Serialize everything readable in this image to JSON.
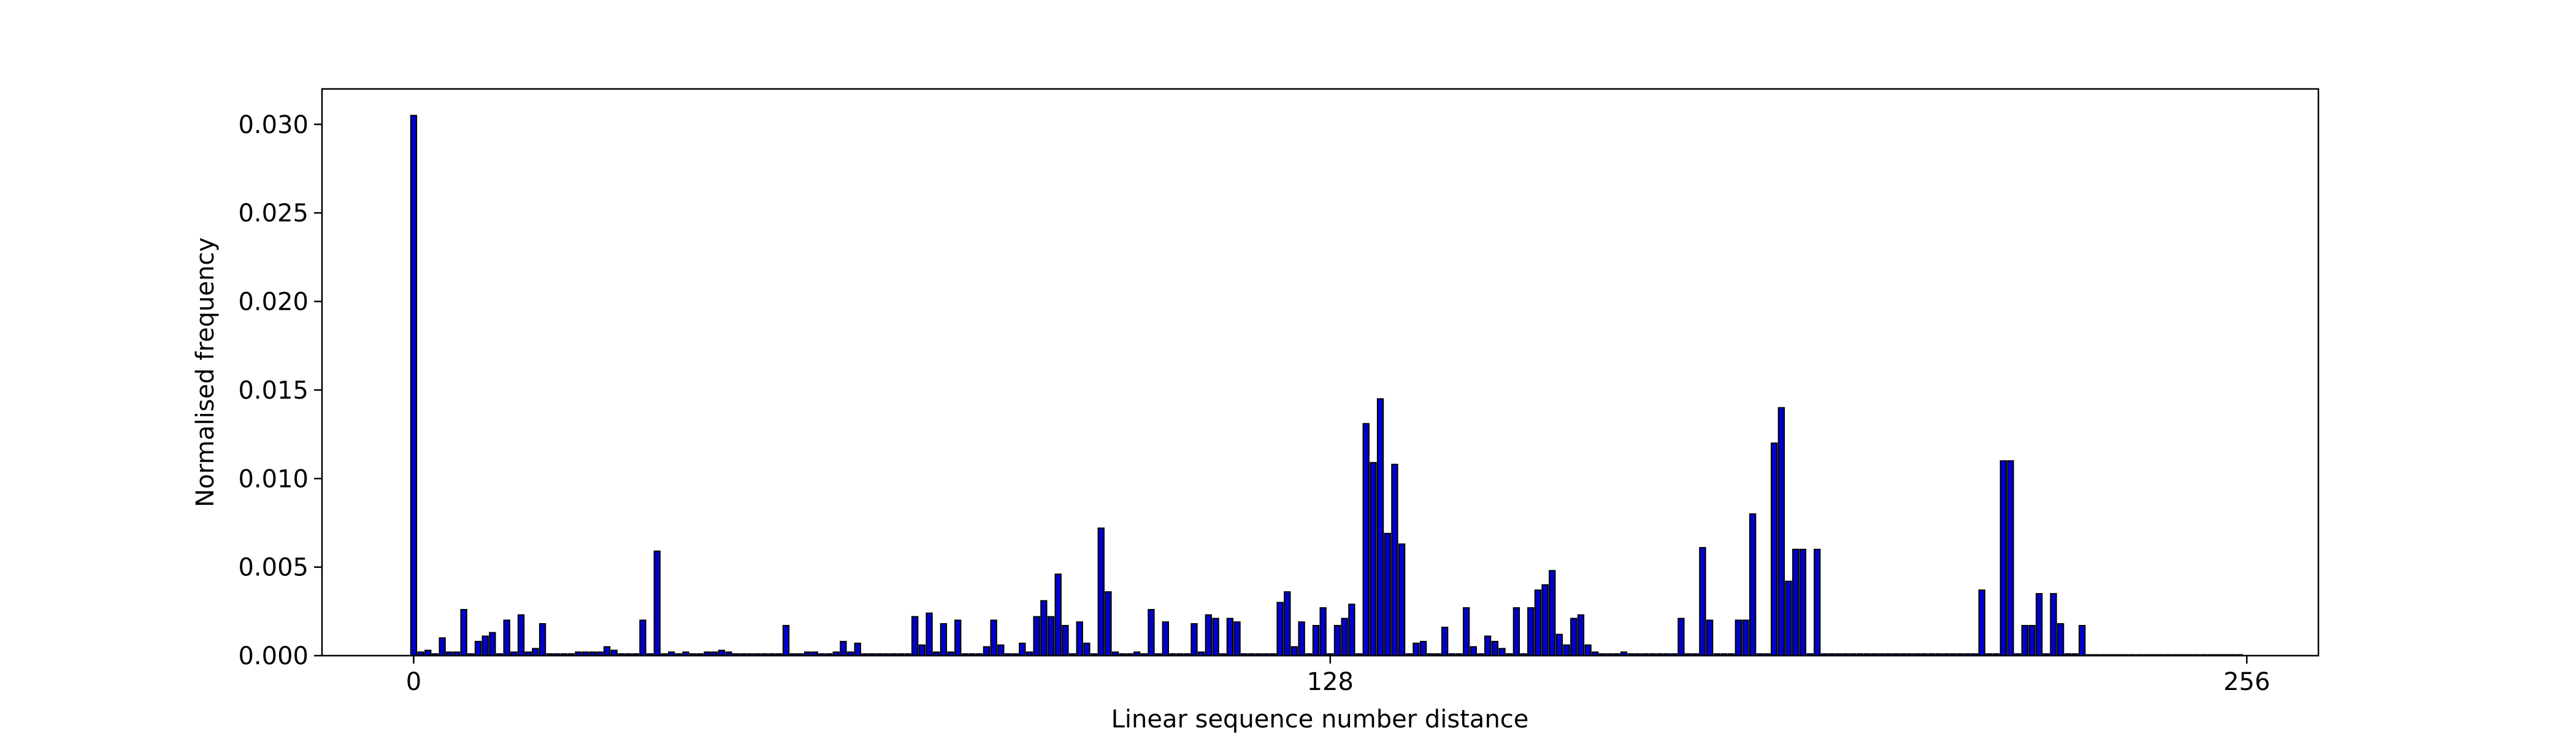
{
  "chart_data": {
    "type": "bar",
    "xlabel": "Linear sequence number distance",
    "ylabel": "Normalised frequency",
    "color": "#0000cd",
    "edgecolor": "#000000",
    "bar_width": 0.8,
    "xlim": [
      -12.8,
      266
    ],
    "ylim": [
      0,
      0.032
    ],
    "xticks": [
      0,
      128,
      256
    ],
    "yticks": [
      {
        "value": 0,
        "label": "0.000"
      },
      {
        "value": 0.005,
        "label": "0.005"
      },
      {
        "value": 0.01,
        "label": "0.010"
      },
      {
        "value": 0.015,
        "label": "0.015"
      },
      {
        "value": 0.02,
        "label": "0.020"
      },
      {
        "value": 0.025,
        "label": "0.025"
      },
      {
        "value": 0.03,
        "label": "0.030"
      }
    ],
    "x": [
      0,
      1,
      2,
      3,
      4,
      5,
      6,
      7,
      8,
      9,
      10,
      11,
      12,
      13,
      14,
      15,
      16,
      17,
      18,
      19,
      20,
      21,
      22,
      23,
      24,
      25,
      26,
      27,
      28,
      29,
      30,
      31,
      32,
      33,
      34,
      35,
      36,
      37,
      38,
      39,
      40,
      41,
      42,
      43,
      44,
      45,
      46,
      47,
      48,
      49,
      50,
      51,
      52,
      53,
      54,
      55,
      56,
      57,
      58,
      59,
      60,
      61,
      62,
      63,
      64,
      65,
      66,
      67,
      68,
      69,
      70,
      71,
      72,
      73,
      74,
      75,
      76,
      77,
      78,
      79,
      80,
      81,
      82,
      83,
      84,
      85,
      86,
      87,
      88,
      89,
      90,
      91,
      92,
      93,
      94,
      95,
      96,
      97,
      98,
      99,
      100,
      101,
      102,
      103,
      104,
      105,
      106,
      107,
      108,
      109,
      110,
      111,
      112,
      113,
      114,
      115,
      116,
      117,
      118,
      119,
      120,
      121,
      122,
      123,
      124,
      125,
      126,
      127,
      128,
      129,
      130,
      131,
      132,
      133,
      134,
      135,
      136,
      137,
      138,
      139,
      140,
      141,
      142,
      143,
      144,
      145,
      146,
      147,
      148,
      149,
      150,
      151,
      152,
      153,
      154,
      155,
      156,
      157,
      158,
      159,
      160,
      161,
      162,
      163,
      164,
      165,
      166,
      167,
      168,
      169,
      170,
      171,
      172,
      173,
      174,
      175,
      176,
      177,
      178,
      179,
      180,
      181,
      182,
      183,
      184,
      185,
      186,
      187,
      188,
      189,
      190,
      191,
      192,
      193,
      194,
      195,
      196,
      197,
      198,
      199,
      200,
      201,
      202,
      203,
      204,
      205,
      206,
      207,
      208,
      209,
      210,
      211,
      212,
      213,
      214,
      215,
      216,
      217,
      218,
      219,
      220,
      221,
      222,
      223,
      224,
      225,
      226,
      227,
      228,
      229,
      230,
      231,
      232,
      233,
      234,
      235,
      236,
      237,
      238,
      239,
      240,
      241,
      242,
      243,
      244,
      245,
      246,
      247,
      248,
      249,
      250,
      251,
      252,
      253,
      254,
      255
    ],
    "values": [
      0.0305,
      0.0002,
      0.0003,
      0.0001,
      0.001,
      0.0002,
      0.0002,
      0.0026,
      0.0001,
      0.0008,
      0.0011,
      0.0013,
      0.0001,
      0.002,
      0.0002,
      0.0023,
      0.0002,
      0.0004,
      0.0018,
      0.0001,
      0.0001,
      0.0001,
      0.0001,
      0.0002,
      0.0002,
      0.0002,
      0.0002,
      0.0005,
      0.0003,
      0.0001,
      0.0001,
      0.0001,
      0.002,
      0.0001,
      0.0059,
      0.0001,
      0.0002,
      0.0001,
      0.0002,
      0.0001,
      0.0001,
      0.0002,
      0.0002,
      0.0003,
      0.0002,
      0.0001,
      0.0001,
      0.0001,
      0.0001,
      0.0001,
      0.0001,
      0.0001,
      0.0017,
      0.0001,
      0.0001,
      0.0002,
      0.0002,
      0.0001,
      0.0001,
      0.0002,
      0.0008,
      0.0002,
      0.0007,
      0.0001,
      0.0001,
      0.0001,
      0.0001,
      0.0001,
      0.0001,
      0.0001,
      0.0022,
      0.0006,
      0.0024,
      0.0002,
      0.0018,
      0.0002,
      0.002,
      0.0001,
      0.0001,
      0.0001,
      0.0005,
      0.002,
      0.0006,
      0.0001,
      0.0001,
      0.0007,
      0.0002,
      0.0022,
      0.0031,
      0.0022,
      0.0046,
      0.0017,
      0.0001,
      0.0019,
      0.0007,
      0.0001,
      0.0072,
      0.0036,
      0.0002,
      0.0001,
      0.0001,
      0.0002,
      0.0001,
      0.0026,
      0.0001,
      0.0019,
      0.0001,
      0.0001,
      0.0001,
      0.0018,
      0.0002,
      0.0023,
      0.0021,
      0.0001,
      0.0021,
      0.0019,
      0.0001,
      0.0001,
      0.0001,
      0.0001,
      0.0001,
      0.003,
      0.0036,
      0.0005,
      0.0019,
      0.0001,
      0.0017,
      0.0027,
      0.0001,
      0.0017,
      0.0021,
      0.0029,
      0.0001,
      0.0131,
      0.0109,
      0.0145,
      0.0069,
      0.0108,
      0.0063,
      0.0001,
      0.0007,
      0.0008,
      0.0001,
      0.0001,
      0.0016,
      0.0001,
      0.0001,
      0.0027,
      0.0005,
      0.0001,
      0.0011,
      0.0008,
      0.0004,
      0.0001,
      0.0027,
      0.0001,
      0.0027,
      0.0037,
      0.004,
      0.0048,
      0.0012,
      0.0006,
      0.0021,
      0.0023,
      0.0006,
      0.0002,
      0.0001,
      0.0001,
      0.0001,
      0.0002,
      0.0001,
      0.0001,
      0.0001,
      0.0001,
      0.0001,
      0.0001,
      0.0001,
      0.0021,
      0.0001,
      0.0001,
      0.0061,
      0.002,
      0.0001,
      0.0001,
      0.0001,
      0.002,
      0.002,
      0.008,
      0.0001,
      0.0001,
      0.012,
      0.014,
      0.0042,
      0.006,
      0.006,
      0.0001,
      0.006,
      0.0001,
      0.0001,
      0.0001,
      0.0001,
      0.0001,
      0.0001,
      0.0001,
      0.0001,
      0.0001,
      0.0001,
      0.0001,
      0.0001,
      0.0001,
      0.0001,
      0.0001,
      0.0001,
      0.0001,
      0.0001,
      0.0001,
      0.0001,
      0.0001,
      0.0001,
      0.0037,
      0.0001,
      0.0001,
      0.011,
      0.011,
      0.0001,
      0.0017,
      0.0017,
      0.0035,
      0.0001,
      0.0035,
      0.0018,
      0.0001,
      0.0001,
      0.0017,
      5e-05,
      5e-05,
      5e-05,
      5e-05,
      5e-05,
      5e-05,
      5e-05,
      5e-05,
      5e-05,
      5e-05,
      5e-05,
      5e-05,
      5e-05,
      5e-05,
      5e-05,
      5e-05,
      5e-05,
      5e-05,
      5e-05,
      5e-05,
      5e-05,
      5e-05
    ]
  }
}
